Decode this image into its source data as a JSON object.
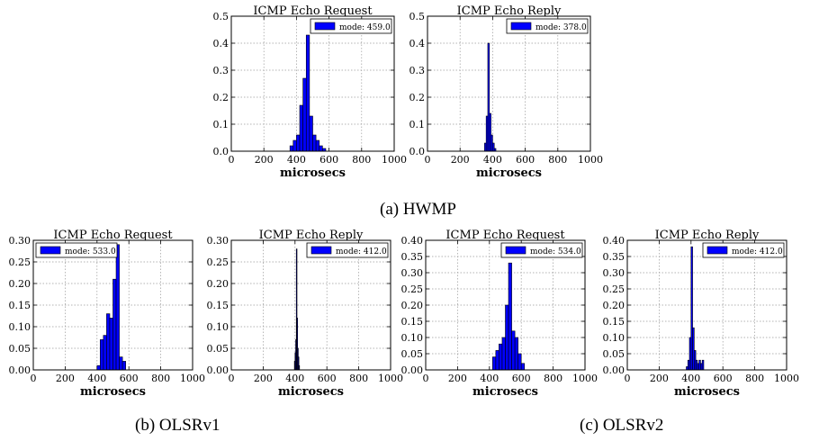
{
  "captions": {
    "a": "(a) HWMP",
    "b": "(b) OLSRv1",
    "c": "(c) OLSRv2"
  },
  "chart_data": [
    {
      "type": "bar",
      "group": "HWMP",
      "title": "ICMP Echo Request",
      "xlabel": "microsecs",
      "ylabel": "",
      "xlim": [
        0,
        1000
      ],
      "ylim": [
        0,
        0.5
      ],
      "xticks": [
        "0",
        "200",
        "400",
        "600",
        "800",
        "1000"
      ],
      "yticks": [
        "0.0",
        "0.1",
        "0.2",
        "0.3",
        "0.4",
        "0.5"
      ],
      "grid": true,
      "legend": {
        "label": "mode: 459.0",
        "position": "top-right"
      },
      "bin_width": 20,
      "bins": [
        [
          360,
          0.02
        ],
        [
          380,
          0.04
        ],
        [
          400,
          0.06
        ],
        [
          420,
          0.17
        ],
        [
          440,
          0.27
        ],
        [
          460,
          0.43
        ],
        [
          480,
          0.13
        ],
        [
          500,
          0.06
        ],
        [
          520,
          0.04
        ],
        [
          540,
          0.02
        ],
        [
          560,
          0.01
        ]
      ]
    },
    {
      "type": "bar",
      "group": "HWMP",
      "title": "ICMP Echo Reply",
      "xlabel": "microsecs",
      "ylabel": "",
      "xlim": [
        0,
        1000
      ],
      "ylim": [
        0,
        0.5
      ],
      "xticks": [
        "0",
        "200",
        "400",
        "600",
        "800",
        "1000"
      ],
      "yticks": [
        "0.0",
        "0.1",
        "0.2",
        "0.3",
        "0.4",
        "0.5"
      ],
      "grid": true,
      "legend": {
        "label": "mode: 378.0",
        "position": "top-right"
      },
      "bin_width": 10,
      "bins": [
        [
          350,
          0.03
        ],
        [
          360,
          0.13
        ],
        [
          370,
          0.4
        ],
        [
          380,
          0.14
        ],
        [
          390,
          0.06
        ],
        [
          400,
          0.03
        ],
        [
          410,
          0.01
        ]
      ]
    },
    {
      "type": "bar",
      "group": "OLSRv1",
      "title": "ICMP Echo Request",
      "xlabel": "microsecs",
      "ylabel": "",
      "xlim": [
        0,
        1000
      ],
      "ylim": [
        0,
        0.3
      ],
      "xticks": [
        "0",
        "200",
        "400",
        "600",
        "800",
        "1000"
      ],
      "yticks": [
        "0.00",
        "0.05",
        "0.10",
        "0.15",
        "0.20",
        "0.25",
        "0.30"
      ],
      "grid": true,
      "legend": {
        "label": "mode: 533.0",
        "position": "top-left"
      },
      "bin_width": 20,
      "bins": [
        [
          400,
          0.01
        ],
        [
          420,
          0.07
        ],
        [
          440,
          0.08
        ],
        [
          460,
          0.13
        ],
        [
          480,
          0.12
        ],
        [
          500,
          0.21
        ],
        [
          520,
          0.29
        ],
        [
          540,
          0.03
        ],
        [
          560,
          0.02
        ]
      ]
    },
    {
      "type": "bar",
      "group": "OLSRv1",
      "title": "ICMP Echo Reply",
      "xlabel": "microsecs",
      "ylabel": "",
      "xlim": [
        0,
        1000
      ],
      "ylim": [
        0,
        0.3
      ],
      "xticks": [
        "0",
        "200",
        "400",
        "600",
        "800",
        "1000"
      ],
      "yticks": [
        "0.00",
        "0.05",
        "0.10",
        "0.15",
        "0.20",
        "0.25",
        "0.30"
      ],
      "grid": true,
      "legend": {
        "label": "mode: 412.0",
        "position": "top-right"
      },
      "bin_width": 4,
      "bins": [
        [
          396,
          0.02
        ],
        [
          400,
          0.04
        ],
        [
          404,
          0.07
        ],
        [
          408,
          0.28
        ],
        [
          412,
          0.12
        ],
        [
          416,
          0.05
        ],
        [
          420,
          0.03
        ],
        [
          424,
          0.01
        ]
      ]
    },
    {
      "type": "bar",
      "group": "OLSRv2",
      "title": "ICMP Echo Request",
      "xlabel": "microsecs",
      "ylabel": "",
      "xlim": [
        0,
        1000
      ],
      "ylim": [
        0,
        0.4
      ],
      "xticks": [
        "0",
        "200",
        "400",
        "600",
        "800",
        "1000"
      ],
      "yticks": [
        "0.00",
        "0.05",
        "0.10",
        "0.15",
        "0.20",
        "0.25",
        "0.30",
        "0.35",
        "0.40"
      ],
      "grid": true,
      "legend": {
        "label": "mode: 534.0",
        "position": "top-right"
      },
      "bin_width": 20,
      "bins": [
        [
          420,
          0.04
        ],
        [
          440,
          0.06
        ],
        [
          460,
          0.08
        ],
        [
          480,
          0.1
        ],
        [
          500,
          0.2
        ],
        [
          520,
          0.33
        ],
        [
          540,
          0.12
        ],
        [
          560,
          0.1
        ],
        [
          580,
          0.05
        ],
        [
          600,
          0.02
        ]
      ]
    },
    {
      "type": "bar",
      "group": "OLSRv2",
      "title": "ICMP Echo Reply",
      "xlabel": "microsecs",
      "ylabel": "",
      "xlim": [
        0,
        1000
      ],
      "ylim": [
        0,
        0.4
      ],
      "xticks": [
        "0",
        "200",
        "400",
        "600",
        "800",
        "1000"
      ],
      "yticks": [
        "0.00",
        "0.05",
        "0.10",
        "0.15",
        "0.20",
        "0.25",
        "0.30",
        "0.35",
        "0.40"
      ],
      "grid": true,
      "legend": {
        "label": "mode: 412.0",
        "position": "top-right"
      },
      "bin_width": 10,
      "bins": [
        [
          370,
          0.01
        ],
        [
          380,
          0.03
        ],
        [
          390,
          0.1
        ],
        [
          400,
          0.38
        ],
        [
          410,
          0.13
        ],
        [
          420,
          0.06
        ],
        [
          430,
          0.03
        ],
        [
          440,
          0.02
        ],
        [
          450,
          0.03
        ],
        [
          460,
          0.02
        ],
        [
          470,
          0.03
        ]
      ]
    }
  ],
  "colors": {
    "bar_fill": "#0000ff",
    "bar_edge": "#000000",
    "grid": "#9a9a9a"
  }
}
